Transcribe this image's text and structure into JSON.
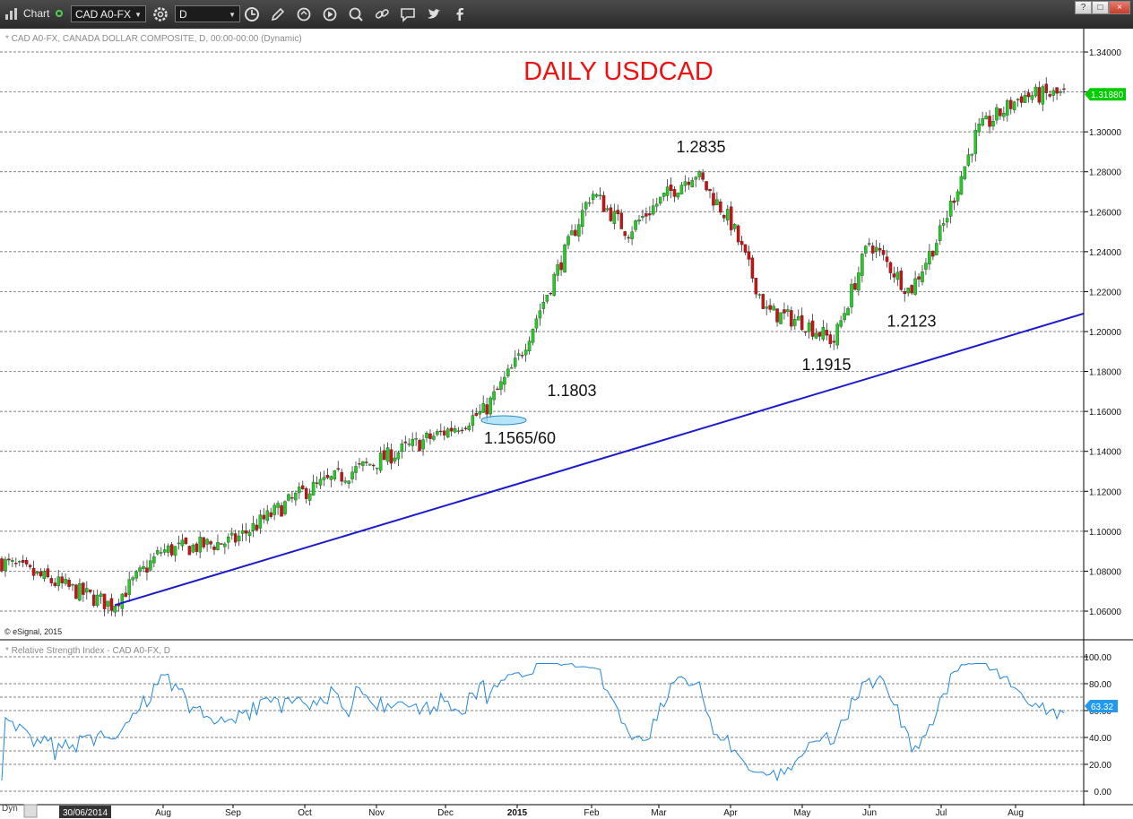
{
  "toolbar": {
    "title": "Chart",
    "symbol": "CAD A0-FX",
    "interval": "D",
    "icons": [
      "gear-icon",
      "clock-icon",
      "pencil-icon",
      "cycle-icon",
      "play-icon",
      "search-icon",
      "link-icon",
      "chat-icon",
      "twitter-icon",
      "facebook-icon"
    ],
    "window_buttons": [
      "?",
      "□",
      "×"
    ]
  },
  "price_panel": {
    "header": "* CAD A0-FX, CANADA DOLLAR COMPOSITE, D, 00:00-00:00 (Dynamic)",
    "title": "DAILY USDCAD",
    "copyright": "© eSignal, 2015",
    "current_price": "1.31880",
    "current_price_value": 1.3188,
    "price_ticks": [
      "1.34000",
      "1.32000",
      "1.30000",
      "1.28000",
      "1.26000",
      "1.24000",
      "1.22000",
      "1.20000",
      "1.18000",
      "1.16000",
      "1.14000",
      "1.12000",
      "1.10000",
      "1.08000",
      "1.06000"
    ],
    "annotations": [
      {
        "text": "1.2835",
        "value": 1.2835,
        "month": "Mar"
      },
      {
        "text": "1.1803",
        "value": 1.1803,
        "month": "Jan"
      },
      {
        "text": "1.1565/60",
        "value": 1.1565,
        "month": "Dec"
      },
      {
        "text": "1.1915",
        "value": 1.1915,
        "month": "May"
      },
      {
        "text": "1.2123",
        "value": 1.2123,
        "month": "Jun"
      }
    ]
  },
  "rsi_panel": {
    "header": "* Relative Strength Index - CAD A0-FX, D",
    "current_value": "63.32",
    "current_value_num": 63.32,
    "ticks": [
      "100.00",
      "80.00",
      "60.00",
      "40.00",
      "20.00",
      "0.00"
    ]
  },
  "x_axis": {
    "start_date_label": "30/06/2014",
    "months": [
      "Aug",
      "Sep",
      "Oct",
      "Nov",
      "Dec",
      "2015",
      "Feb",
      "Mar",
      "Apr",
      "May",
      "Jun",
      "Jul",
      "Aug"
    ]
  },
  "footer": {
    "dyn_label": "Dyn"
  },
  "colors": {
    "up": "#22cc22",
    "down": "#cc1111",
    "trendline": "#1a1ad0",
    "rsi": "#2288dd",
    "title": "#ee1111",
    "price_tag": "#00cc00",
    "rsi_tag": "#2299ee"
  },
  "chart_data": {
    "type": "candlestick",
    "title": "DAILY USDCAD",
    "ylim": [
      1.05,
      1.35
    ],
    "anchors": [
      {
        "month": "Jul-2014",
        "close": 1.085
      },
      {
        "month": "Jul-2014 end",
        "close": 1.063
      },
      {
        "month": "Aug",
        "close": 1.09
      },
      {
        "month": "Sep",
        "close": 1.095
      },
      {
        "month": "Oct",
        "close": 1.12
      },
      {
        "month": "Nov",
        "close": 1.135
      },
      {
        "month": "Dec",
        "close": 1.15
      },
      {
        "month": "Dec mid",
        "close": 1.16
      },
      {
        "month": "2015",
        "close": 1.185
      },
      {
        "month": "Jan end",
        "close": 1.27
      },
      {
        "month": "Feb",
        "close": 1.25
      },
      {
        "month": "Mar",
        "close": 1.265
      },
      {
        "month": "Mar mid",
        "close": 1.28
      },
      {
        "month": "Apr",
        "close": 1.255
      },
      {
        "month": "Apr end",
        "close": 1.21
      },
      {
        "month": "May",
        "close": 1.205
      },
      {
        "month": "May mid",
        "close": 1.195
      },
      {
        "month": "Jun",
        "close": 1.245
      },
      {
        "month": "Jun mid",
        "close": 1.22
      },
      {
        "month": "Jul",
        "close": 1.25
      },
      {
        "month": "Jul end",
        "close": 1.3
      },
      {
        "month": "Aug",
        "close": 1.318
      },
      {
        "month": "Aug end",
        "close": 1.3188
      }
    ],
    "trendline": [
      {
        "date": "Jul-2014 end",
        "value": 1.063
      },
      {
        "date": "Aug-2015 end",
        "value": 1.209
      }
    ],
    "rsi_ylim": [
      -5,
      105
    ],
    "rsi_levels": [
      100,
      80,
      70,
      60,
      40,
      30,
      20,
      0
    ]
  }
}
